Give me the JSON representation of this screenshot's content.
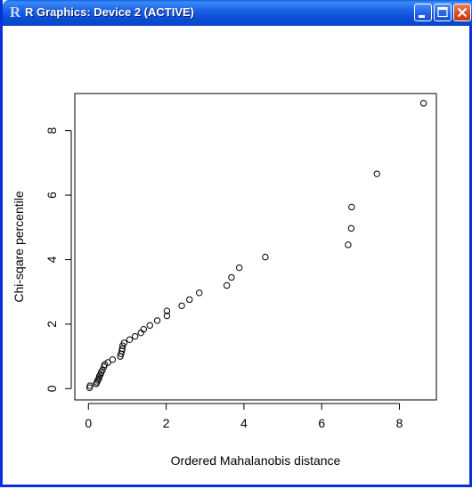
{
  "window": {
    "title": "R Graphics: Device 2 (ACTIVE)",
    "icon": "r-logo-icon",
    "buttons": [
      "minimize-icon",
      "maximize-icon",
      "close-icon"
    ],
    "title_color": "#0a4fd6"
  },
  "chart_data": {
    "type": "scatter",
    "title": "",
    "xlabel": "Ordered Mahalanobis distance",
    "ylabel": "Chi-sqare percentile",
    "xlim": [
      -0.35,
      8.95
    ],
    "ylim": [
      -0.35,
      9.15
    ],
    "xticks": [
      0,
      2,
      4,
      6,
      8
    ],
    "yticks": [
      0,
      2,
      4,
      6,
      8
    ],
    "xtick_labels": [
      "0",
      "2",
      "4",
      "6",
      "8"
    ],
    "ytick_labels": [
      "0",
      "2",
      "4",
      "6",
      "8"
    ],
    "grid": false,
    "marker": "open-circle",
    "points": [
      [
        0.03,
        0.03
      ],
      [
        0.04,
        0.09
      ],
      [
        0.2,
        0.15
      ],
      [
        0.22,
        0.2
      ],
      [
        0.24,
        0.26
      ],
      [
        0.27,
        0.31
      ],
      [
        0.28,
        0.38
      ],
      [
        0.31,
        0.44
      ],
      [
        0.33,
        0.5
      ],
      [
        0.36,
        0.57
      ],
      [
        0.4,
        0.68
      ],
      [
        0.42,
        0.75
      ],
      [
        0.5,
        0.81
      ],
      [
        0.62,
        0.9
      ],
      [
        0.82,
        1.0
      ],
      [
        0.84,
        1.08
      ],
      [
        0.86,
        1.17
      ],
      [
        0.87,
        1.24
      ],
      [
        0.88,
        1.33
      ],
      [
        0.92,
        1.42
      ],
      [
        1.06,
        1.52
      ],
      [
        1.2,
        1.62
      ],
      [
        1.35,
        1.73
      ],
      [
        1.42,
        1.84
      ],
      [
        1.58,
        1.96
      ],
      [
        1.77,
        2.11
      ],
      [
        2.02,
        2.26
      ],
      [
        2.02,
        2.41
      ],
      [
        2.4,
        2.57
      ],
      [
        2.6,
        2.76
      ],
      [
        2.85,
        2.97
      ],
      [
        3.56,
        3.2
      ],
      [
        3.68,
        3.45
      ],
      [
        3.88,
        3.75
      ],
      [
        4.55,
        4.08
      ],
      [
        6.68,
        4.46
      ],
      [
        6.76,
        4.97
      ],
      [
        6.77,
        5.63
      ],
      [
        7.42,
        6.66
      ],
      [
        8.62,
        8.85
      ]
    ]
  }
}
